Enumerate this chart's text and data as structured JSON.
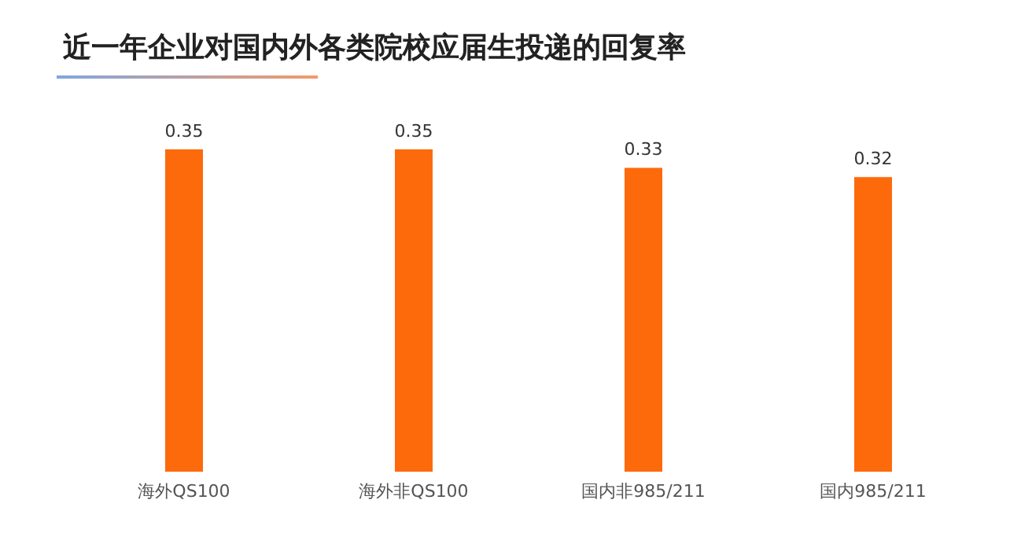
{
  "chart_data": {
    "type": "bar",
    "title": "近一年企业对国内外各类院校应届生投递的回复率",
    "categories": [
      "海外QS100",
      "海外非QS100",
      "国内非985/211",
      "国内985/211"
    ],
    "values": [
      0.35,
      0.35,
      0.33,
      0.32
    ],
    "color": "#fd6a0c",
    "data_labels": true,
    "grid": false,
    "legend": false
  }
}
